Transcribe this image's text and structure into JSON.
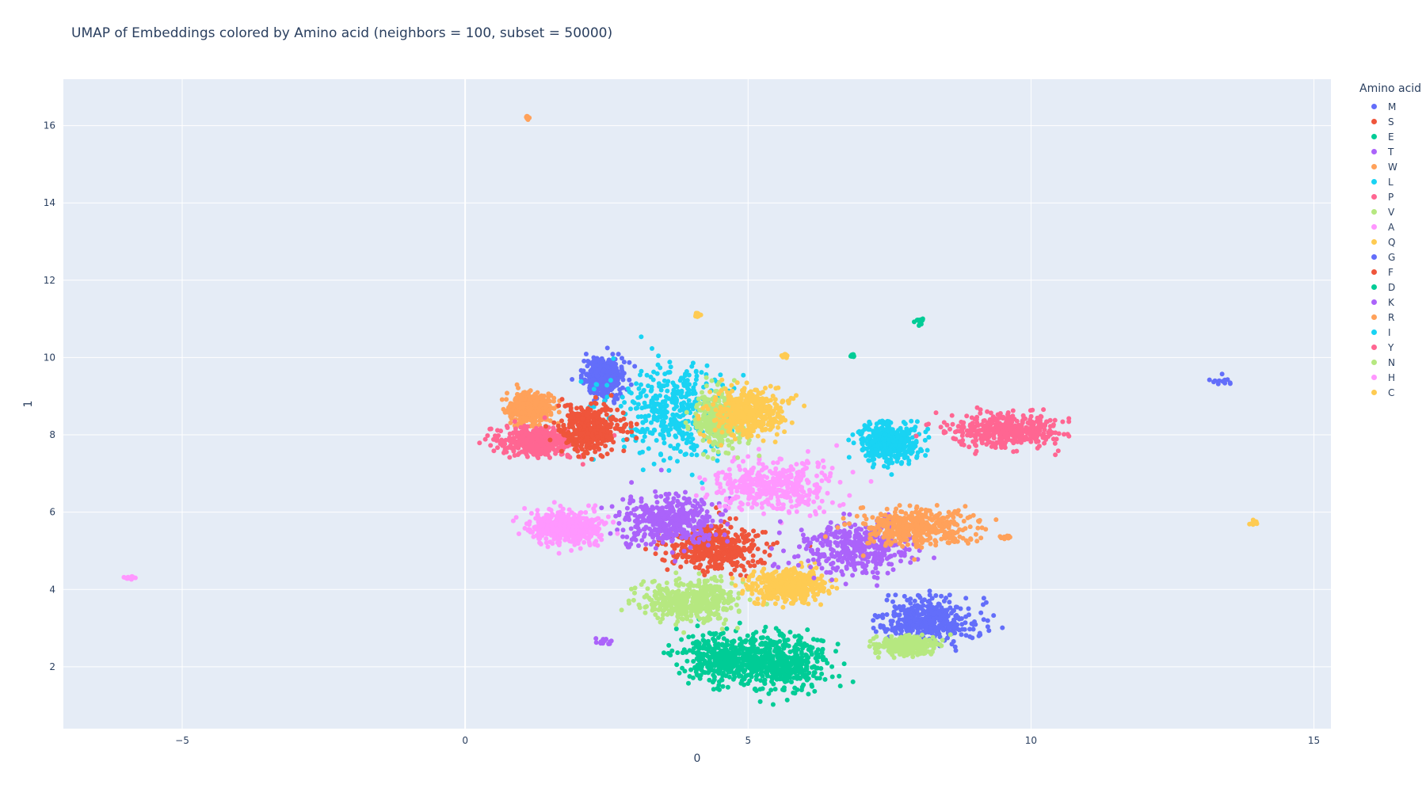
{
  "chart_data": {
    "type": "scatter",
    "title": "UMAP of Embeddings colored by Amino acid (neighbors = 100, subset = 50000)",
    "xlabel": "0",
    "ylabel": "1",
    "xlim": [
      -7.1,
      15.3
    ],
    "ylim": [
      0.4,
      17.2
    ],
    "x_ticks": [
      -5,
      0,
      5,
      10,
      15
    ],
    "y_ticks": [
      2,
      4,
      6,
      8,
      10,
      12,
      14,
      16
    ],
    "x_tick_labels": [
      "−5",
      "0",
      "5",
      "10",
      "15"
    ],
    "y_tick_labels": [
      "2",
      "4",
      "6",
      "8",
      "10",
      "12",
      "14",
      "16"
    ],
    "grid": true,
    "legend_title": "Amino acid",
    "legend_position": "right",
    "colors": {
      "M": "#636efa",
      "S": "#EF553B",
      "E": "#00cc96",
      "T": "#ab63fa",
      "W": "#FFA15A",
      "L": "#19d3f3",
      "P": "#FF6692",
      "V": "#B6E880",
      "A": "#FF97FF",
      "Q": "#FECB52",
      "G": "#636efa",
      "F": "#EF553B",
      "D": "#00cc96",
      "K": "#ab63fa",
      "R": "#FFA15A",
      "I": "#19d3f3",
      "Y": "#FF6692",
      "N": "#B6E880",
      "H": "#FF97FF",
      "C": "#FECB52"
    },
    "series": [
      {
        "name": "M",
        "clusters": [
          {
            "cx": 2.45,
            "cy": 9.5,
            "sx": 0.18,
            "sy": 0.28
          }
        ]
      },
      {
        "name": "S",
        "clusters": [
          {
            "cx": 4.4,
            "cy": 5.1,
            "sx": 0.5,
            "sy": 0.35
          }
        ]
      },
      {
        "name": "E",
        "clusters": [
          {
            "cx": 4.6,
            "cy": 2.2,
            "sx": 0.45,
            "sy": 0.35
          }
        ]
      },
      {
        "name": "T",
        "clusters": [
          {
            "cx": 3.6,
            "cy": 5.8,
            "sx": 0.45,
            "sy": 0.35
          },
          {
            "cx": 2.45,
            "cy": 2.65,
            "sx": 0.1,
            "sy": 0.05
          }
        ]
      },
      {
        "name": "W",
        "clusters": [
          {
            "cx": 1.15,
            "cy": 8.7,
            "sx": 0.22,
            "sy": 0.2
          },
          {
            "cx": 1.1,
            "cy": 16.2,
            "sx": 0.02,
            "sy": 0.02
          }
        ]
      },
      {
        "name": "L",
        "clusters": [
          {
            "cx": 3.65,
            "cy": 8.6,
            "sx": 0.55,
            "sy": 0.65
          }
        ]
      },
      {
        "name": "P",
        "clusters": [
          {
            "cx": 1.3,
            "cy": 7.85,
            "sx": 0.4,
            "sy": 0.22
          }
        ]
      },
      {
        "name": "V",
        "clusters": [
          {
            "cx": 4.0,
            "cy": 3.7,
            "sx": 0.5,
            "sy": 0.3
          }
        ]
      },
      {
        "name": "A",
        "clusters": [
          {
            "cx": 5.4,
            "cy": 6.7,
            "sx": 0.6,
            "sy": 0.35
          }
        ]
      },
      {
        "name": "Q",
        "clusters": [
          {
            "cx": 5.7,
            "cy": 4.1,
            "sx": 0.35,
            "sy": 0.25
          },
          {
            "cx": 4.1,
            "cy": 11.1,
            "sx": 0.03,
            "sy": 0.03
          },
          {
            "cx": 5.65,
            "cy": 10.05,
            "sx": 0.03,
            "sy": 0.03
          },
          {
            "cx": 13.95,
            "cy": 5.75,
            "sx": 0.03,
            "sy": 0.03
          }
        ]
      },
      {
        "name": "G",
        "clusters": [
          {
            "cx": 8.2,
            "cy": 3.2,
            "sx": 0.45,
            "sy": 0.3
          },
          {
            "cx": 13.4,
            "cy": 9.4,
            "sx": 0.1,
            "sy": 0.06
          }
        ]
      },
      {
        "name": "F",
        "clusters": [
          {
            "cx": 2.2,
            "cy": 8.2,
            "sx": 0.3,
            "sy": 0.35
          }
        ]
      },
      {
        "name": "D",
        "clusters": [
          {
            "cx": 5.6,
            "cy": 2.1,
            "sx": 0.45,
            "sy": 0.4
          },
          {
            "cx": 6.85,
            "cy": 10.05,
            "sx": 0.02,
            "sy": 0.02
          },
          {
            "cx": 8.05,
            "cy": 10.95,
            "sx": 0.05,
            "sy": 0.04
          }
        ]
      },
      {
        "name": "K",
        "clusters": [
          {
            "cx": 6.9,
            "cy": 5.1,
            "sx": 0.55,
            "sy": 0.35
          }
        ]
      },
      {
        "name": "R",
        "clusters": [
          {
            "cx": 8.0,
            "cy": 5.6,
            "sx": 0.55,
            "sy": 0.28
          },
          {
            "cx": 9.55,
            "cy": 5.35,
            "sx": 0.04,
            "sy": 0.02
          }
        ]
      },
      {
        "name": "I",
        "clusters": [
          {
            "cx": 7.5,
            "cy": 7.8,
            "sx": 0.3,
            "sy": 0.3
          }
        ]
      },
      {
        "name": "Y",
        "clusters": [
          {
            "cx": 9.5,
            "cy": 8.1,
            "sx": 0.55,
            "sy": 0.25
          }
        ]
      },
      {
        "name": "N",
        "clusters": [
          {
            "cx": 4.5,
            "cy": 8.4,
            "sx": 0.25,
            "sy": 0.35
          },
          {
            "cx": 7.8,
            "cy": 2.55,
            "sx": 0.25,
            "sy": 0.12
          }
        ]
      },
      {
        "name": "H",
        "clusters": [
          {
            "cx": 1.8,
            "cy": 5.6,
            "sx": 0.35,
            "sy": 0.25
          },
          {
            "cx": -5.9,
            "cy": 4.3,
            "sx": 0.04,
            "sy": 0.02
          }
        ]
      },
      {
        "name": "C",
        "clusters": [
          {
            "cx": 5.0,
            "cy": 8.6,
            "sx": 0.35,
            "sy": 0.35
          }
        ]
      }
    ]
  }
}
